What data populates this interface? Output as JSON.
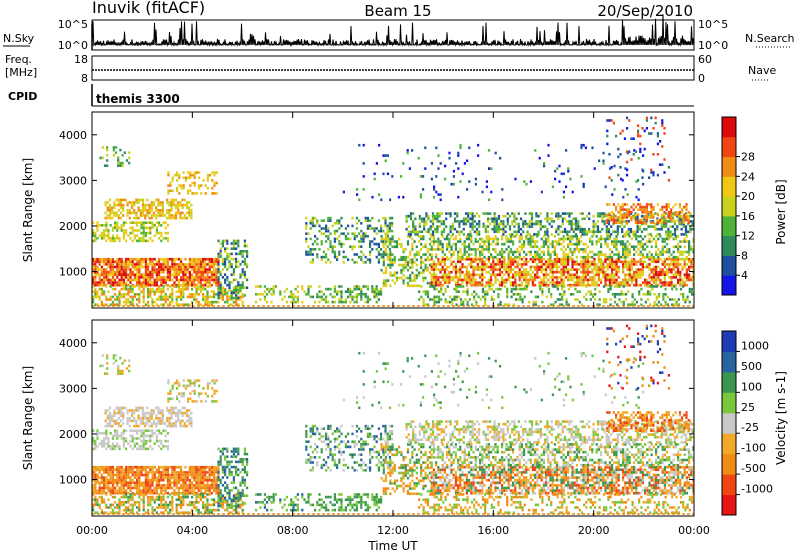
{
  "header": {
    "station": "Inuvik (fitACF)",
    "beam": "Beam 15",
    "date": "20/Sep/2010"
  },
  "nsky_panel": {
    "left_label": "N.Sky",
    "right_label": "N.Search",
    "left_ticks": [
      "10^5",
      "10^0"
    ],
    "right_ticks": [
      "10^5",
      "10^0"
    ]
  },
  "freq_panel": {
    "left_label": "Freq.",
    "left_unit": "[MHz]",
    "right_label": "Nave",
    "left_ticks": [
      "18",
      "8"
    ],
    "right_ticks": [
      "60",
      "0"
    ]
  },
  "cpid_panel": {
    "label": "CPID",
    "program": "themis 3300"
  },
  "colors": {
    "power": [
      "#1414e6",
      "#1e50a0",
      "#2e8a5a",
      "#4fb33a",
      "#c8d21e",
      "#f0c814",
      "#f08c14",
      "#f04614",
      "#dc0a0a"
    ],
    "velocity": [
      "#e61414",
      "#f04614",
      "#f08c14",
      "#f0aa28",
      "#c8c8c8",
      "#78c83c",
      "#3c9650",
      "#2864a0",
      "#1e3cb4"
    ]
  },
  "chart_data": [
    {
      "type": "heatmap",
      "quantity": "power",
      "ylabel": "Slant Range [km]",
      "ylim": [
        200,
        4500
      ],
      "yticks": [
        "1000",
        "2000",
        "3000",
        "4000"
      ],
      "xlim_hours": [
        0,
        24
      ],
      "colorbar_label": "Power [dB]",
      "colorbar_ticks": [
        "4",
        "8",
        "12",
        "16",
        "20",
        "24",
        "28"
      ],
      "colorbar_range": [
        0,
        32
      ]
    },
    {
      "type": "heatmap",
      "quantity": "velocity",
      "ylabel": "Slant Range [km]",
      "ylim": [
        200,
        4500
      ],
      "yticks": [
        "1000",
        "2000",
        "3000",
        "4000"
      ],
      "xlim_hours": [
        0,
        24
      ],
      "xticks": [
        "00:00",
        "04:00",
        "08:00",
        "12:00",
        "16:00",
        "20:00",
        "00:00"
      ],
      "xlabel": "Time UT",
      "colorbar_label": "Velocity [m s-1]",
      "colorbar_ticks": [
        "1000",
        "500",
        "100",
        "25",
        "-25",
        "-100",
        "-500",
        "-1000"
      ]
    }
  ]
}
